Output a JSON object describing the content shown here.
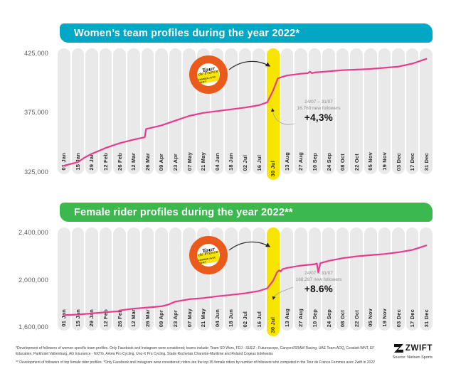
{
  "badge": {
    "name": "Tour de France Femmes avec Zwift",
    "line1": "Tour",
    "line2": "de France",
    "ribbon": "FEMMES AVEC ZWIFT"
  },
  "footer": {
    "note1": "*Development of followers of women specific team profiles. Only Facebook and Instagram were considered; teams include: Team SD Worx, FDJ - SUEZ - Futuroscope, Canyon//SRAM Racing, UAE Team ADQ, Ceratizit-WNT, EF Education, Parkhotel Valkenburg, AG Insurance - NXTG, Arkéa Pro Cycling, Uno-X Pro Cycling, Stade Rochelais Charente-Maritime and Roland Cogeas Edelweiss",
    "note2": "** Development of followers of top female rider profiles. *Only Facebook and Instagram were considered; riders are the top 35 female riders by number of followers who competed in the Tour de France Femmes avec Zwift in 2022",
    "brand": "ZWIFT",
    "source": "Source: Nielsen Sports"
  },
  "chart_data": [
    {
      "type": "line",
      "title": "Women’s team profiles during the year 2022*",
      "banner_color": "#00a8c6",
      "line_color": "#e73c8e",
      "highlight_color": "#f7e400",
      "highlight_category": "30 Jul",
      "ylim": [
        325000,
        425000
      ],
      "y_ticks": [
        {
          "label": "425,000",
          "value": 425000
        },
        {
          "label": "375,000",
          "value": 375000
        },
        {
          "label": "325,000",
          "value": 325000
        }
      ],
      "categories": [
        "01 Jan",
        "15 Jan",
        "29 Jan",
        "12 Feb",
        "26 Feb",
        "12 Mar",
        "26 Mar",
        "09 Apr",
        "23 Apr",
        "07 May",
        "21 May",
        "04 Jun",
        "18 Jun",
        "02 Jul",
        "16 Jul",
        "30 Jul",
        "13 Aug",
        "27 Aug",
        "10 Sep",
        "24 Sep",
        "08 Oct",
        "22 Oct",
        "05 Nov",
        "19 Nov",
        "03 Dec",
        "17 Dec",
        "31 Dec"
      ],
      "values": [
        330000,
        333000,
        340000,
        345000,
        349000,
        352000,
        361000,
        364000,
        368000,
        372000,
        374500,
        376000,
        377500,
        379000,
        381000,
        395000,
        406000,
        407500,
        408500,
        409500,
        410500,
        411000,
        411500,
        412500,
        413500,
        416000,
        420000
      ],
      "annotation": {
        "period": "24/07 – 31/07",
        "text": "16.760 new followers",
        "pct": "+4,3%"
      },
      "detail_points": [
        [
          0,
          330000
        ],
        [
          0.5,
          331500
        ],
        [
          1,
          333000
        ],
        [
          1.5,
          337000
        ],
        [
          2,
          340000
        ],
        [
          3,
          345000
        ],
        [
          4,
          349000
        ],
        [
          5,
          352000
        ],
        [
          5.8,
          354000
        ],
        [
          5.9,
          361000
        ],
        [
          7,
          364000
        ],
        [
          8,
          368000
        ],
        [
          9,
          372000
        ],
        [
          10,
          374500
        ],
        [
          11,
          376000
        ],
        [
          12,
          377500
        ],
        [
          13,
          379000
        ],
        [
          14,
          381000
        ],
        [
          14.6,
          383500
        ],
        [
          15,
          393000
        ],
        [
          15.35,
          403500
        ],
        [
          15.7,
          405000
        ],
        [
          16,
          406000
        ],
        [
          17,
          407500
        ],
        [
          17.5,
          408000
        ],
        [
          17.65,
          409300
        ],
        [
          17.8,
          408000
        ],
        [
          18,
          408600
        ],
        [
          19,
          409500
        ],
        [
          20,
          410500
        ],
        [
          21,
          411000
        ],
        [
          22,
          411500
        ],
        [
          23,
          412500
        ],
        [
          24,
          413500
        ],
        [
          25,
          416000
        ],
        [
          26,
          420000
        ]
      ]
    },
    {
      "type": "line",
      "title": "Female rider profiles during the year 2022**",
      "banner_color": "#3cb94e",
      "line_color": "#e73c8e",
      "highlight_color": "#f7e400",
      "highlight_category": "30 Jul",
      "ylim": [
        1600000,
        2400000
      ],
      "y_ticks": [
        {
          "label": "2,400,000",
          "value": 2400000
        },
        {
          "label": "2,000,000",
          "value": 2000000
        },
        {
          "label": "1,600,000",
          "value": 1600000
        }
      ],
      "categories": [
        "01 Jan",
        "15 Jan",
        "29 Jan",
        "12 Feb",
        "26 Feb",
        "12 Mar",
        "26 Mar",
        "09 Apr",
        "23 Apr",
        "07 May",
        "21 May",
        "04 Jun",
        "18 Jun",
        "02 Jul",
        "16 Jul",
        "30 Jul",
        "13 Aug",
        "27 Aug",
        "10 Sep",
        "24 Sep",
        "08 Oct",
        "22 Oct",
        "05 Nov",
        "19 Nov",
        "03 Dec",
        "17 Dec",
        "31 Dec"
      ],
      "values": [
        1700000,
        1705000,
        1715000,
        1725000,
        1740000,
        1755000,
        1765000,
        1775000,
        1815000,
        1835000,
        1845000,
        1860000,
        1872000,
        1885000,
        1905000,
        1990000,
        2100000,
        2120000,
        2132000,
        2160000,
        2182000,
        2198000,
        2208000,
        2218000,
        2232000,
        2252000,
        2290000
      ],
      "annotation": {
        "period": "24/07 – 31/07",
        "text": "168,287 new followers",
        "pct": "+8.6%"
      },
      "detail_points": [
        [
          0,
          1700000
        ],
        [
          1,
          1705000
        ],
        [
          2,
          1715000
        ],
        [
          3,
          1725000
        ],
        [
          3.9,
          1733000
        ],
        [
          4,
          1740000
        ],
        [
          5,
          1755000
        ],
        [
          6,
          1765000
        ],
        [
          7,
          1775000
        ],
        [
          7.5,
          1790000
        ],
        [
          8,
          1815000
        ],
        [
          9,
          1835000
        ],
        [
          10,
          1845000
        ],
        [
          11,
          1860000
        ],
        [
          12,
          1872000
        ],
        [
          13,
          1885000
        ],
        [
          14,
          1905000
        ],
        [
          14.6,
          1928000
        ],
        [
          15,
          1990000
        ],
        [
          15.3,
          2065000
        ],
        [
          15.45,
          2080000
        ],
        [
          15.55,
          2070000
        ],
        [
          15.7,
          2090000
        ],
        [
          16,
          2100000
        ],
        [
          17,
          2120000
        ],
        [
          18,
          2132000
        ],
        [
          18.15,
          2138000
        ],
        [
          18.25,
          2062000
        ],
        [
          18.4,
          2140000
        ],
        [
          19,
          2160000
        ],
        [
          20,
          2182000
        ],
        [
          21,
          2198000
        ],
        [
          22,
          2208000
        ],
        [
          23,
          2218000
        ],
        [
          24,
          2232000
        ],
        [
          25,
          2252000
        ],
        [
          26,
          2290000
        ]
      ]
    }
  ]
}
